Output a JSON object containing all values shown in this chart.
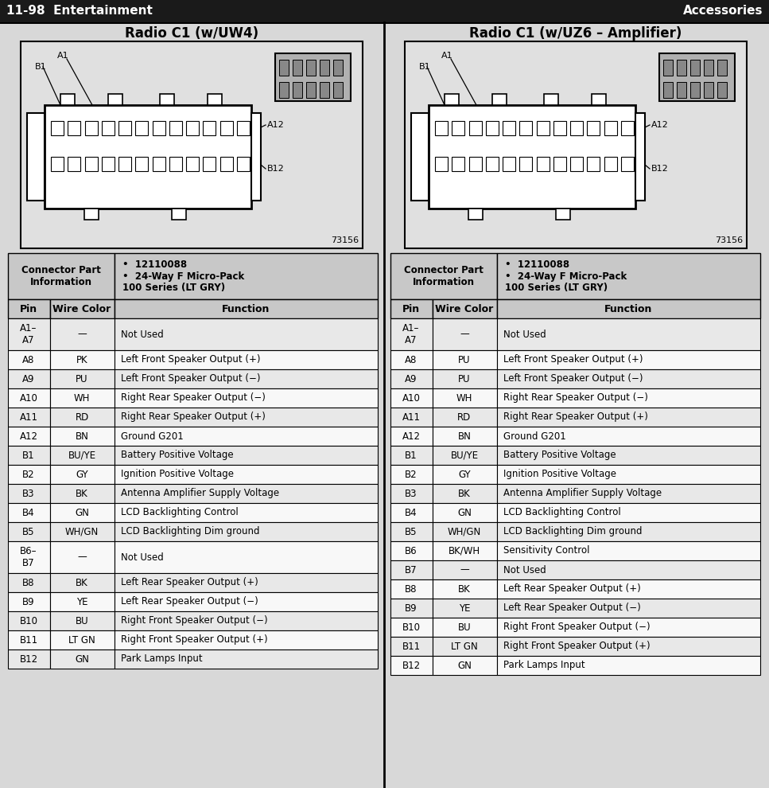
{
  "title_left": "11-98  Entertainment",
  "title_right": "Accessories",
  "diagram1_title": "Radio C1 (w/UW4)",
  "diagram2_title": "Radio C1 (w/UZ6 – Amplifier)",
  "part_number": "12110088",
  "connector_spec": "24-Way F Micro-Pack\n100 Series (LT GRY)",
  "connector_info_label": "Connector Part\nInformation",
  "col_headers": [
    "Pin",
    "Wire Color",
    "Function"
  ],
  "diagram_number": "73156",
  "table1_rows": [
    [
      "A1–\nA7",
      "—",
      "Not Used"
    ],
    [
      "A8",
      "PK",
      "Left Front Speaker Output (+)"
    ],
    [
      "A9",
      "PU",
      "Left Front Speaker Output (−)"
    ],
    [
      "A10",
      "WH",
      "Right Rear Speaker Output (−)"
    ],
    [
      "A11",
      "RD",
      "Right Rear Speaker Output (+)"
    ],
    [
      "A12",
      "BN",
      "Ground G201"
    ],
    [
      "B1",
      "BU/YE",
      "Battery Positive Voltage"
    ],
    [
      "B2",
      "GY",
      "Ignition Positive Voltage"
    ],
    [
      "B3",
      "BK",
      "Antenna Amplifier Supply Voltage"
    ],
    [
      "B4",
      "GN",
      "LCD Backlighting Control"
    ],
    [
      "B5",
      "WH/GN",
      "LCD Backlighting Dim ground"
    ],
    [
      "B6–\nB7",
      "—",
      "Not Used"
    ],
    [
      "B8",
      "BK",
      "Left Rear Speaker Output (+)"
    ],
    [
      "B9",
      "YE",
      "Left Rear Speaker Output (−)"
    ],
    [
      "B10",
      "BU",
      "Right Front Speaker Output (−)"
    ],
    [
      "B11",
      "LT GN",
      "Right Front Speaker Output (+)"
    ],
    [
      "B12",
      "GN",
      "Park Lamps Input"
    ]
  ],
  "table2_rows": [
    [
      "A1–\nA7",
      "—",
      "Not Used"
    ],
    [
      "A8",
      "PU",
      "Left Front Speaker Output (+)"
    ],
    [
      "A9",
      "PU",
      "Left Front Speaker Output (−)"
    ],
    [
      "A10",
      "WH",
      "Right Rear Speaker Output (−)"
    ],
    [
      "A11",
      "RD",
      "Right Rear Speaker Output (+)"
    ],
    [
      "A12",
      "BN",
      "Ground G201"
    ],
    [
      "B1",
      "BU/YE",
      "Battery Positive Voltage"
    ],
    [
      "B2",
      "GY",
      "Ignition Positive Voltage"
    ],
    [
      "B3",
      "BK",
      "Antenna Amplifier Supply Voltage"
    ],
    [
      "B4",
      "GN",
      "LCD Backlighting Control"
    ],
    [
      "B5",
      "WH/GN",
      "LCD Backlighting Dim ground"
    ],
    [
      "B6",
      "BK/WH",
      "Sensitivity Control"
    ],
    [
      "B7",
      "—",
      "Not Used"
    ],
    [
      "B8",
      "BK",
      "Left Rear Speaker Output (+)"
    ],
    [
      "B9",
      "YE",
      "Left Rear Speaker Output (−)"
    ],
    [
      "B10",
      "BU",
      "Right Front Speaker Output (−)"
    ],
    [
      "B11",
      "LT GN",
      "Right Front Speaker Output (+)"
    ],
    [
      "B12",
      "GN",
      "Park Lamps Input"
    ]
  ],
  "bg_color": "#d8d8d8",
  "table_bg": "#f0f0f0",
  "table_header_bg": "#c8c8c8",
  "table_row_bg_even": "#e8e8e8",
  "table_row_bg_odd": "#f8f8f8",
  "border_color": "#000000",
  "text_color": "#000000",
  "header_bar_color": "#1a1a1a"
}
